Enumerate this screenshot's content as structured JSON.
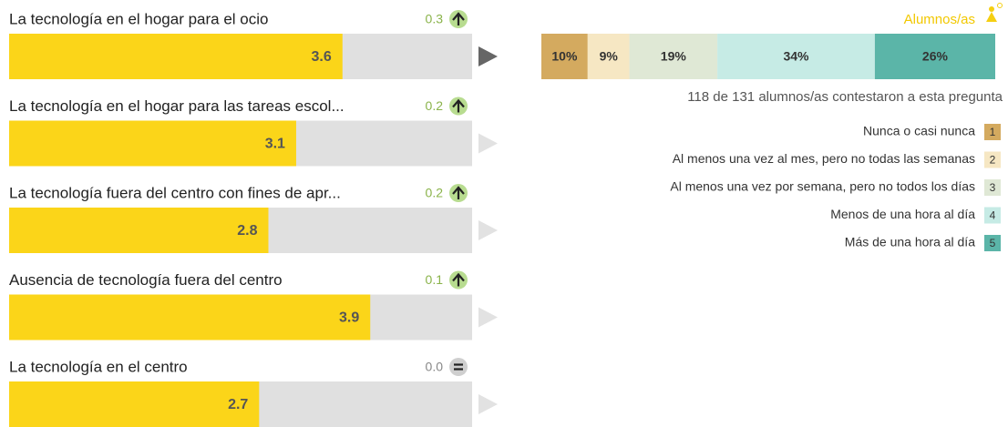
{
  "items": [
    {
      "label": "La tecnología en el hogar para el ocio",
      "value": 3.6,
      "change": 0.3
    },
    {
      "label": "La tecnología en el hogar para las tareas escol...",
      "value": 3.1,
      "change": 0.2
    },
    {
      "label": "La tecnología fuera del centro con fines de apr...",
      "value": 2.8,
      "change": 0.2
    },
    {
      "label": "Ausencia de tecnología fuera del centro",
      "value": 3.9,
      "change": 0.1
    },
    {
      "label": "La tecnología en el centro",
      "value": 2.7,
      "change": {
        "value": 0,
        "label": "0.0"
      }
    }
  ],
  "xlim": [
    0,
    5
  ],
  "bar_color": "#fbd519",
  "stacked": {
    "title": "Alumnos/as",
    "values": [
      10,
      9,
      19,
      34,
      26
    ],
    "value_labels": [
      "10%",
      "9%",
      "19%",
      "34%",
      "26%"
    ],
    "note": "118 de 131 alumnos/as contestaron a esta pregunta"
  },
  "legend": [
    {
      "label": "Nunca o casi nunca",
      "key": 1,
      "color": "#d4aa5f"
    },
    {
      "label": "Al menos una vez al mes, pero no todas las semanas",
      "key": 2,
      "color": "#f6e7c3"
    },
    {
      "label": "Al menos una vez por semana, pero no todos los días",
      "key": 3,
      "color": "#dfe8d5"
    },
    {
      "label": "Menos de una hora al día",
      "key": 4,
      "color": "#c6ebe5"
    },
    {
      "label": "Más de una hora al día",
      "key": 5,
      "color": "#5bb5a8"
    }
  ]
}
